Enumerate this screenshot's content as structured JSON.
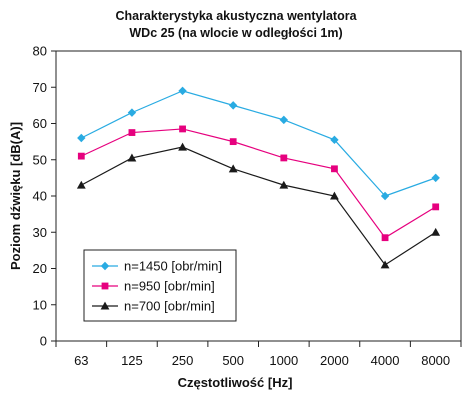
{
  "chart_data": {
    "type": "line",
    "title_line1": "Charakterystyka akustyczna wentylatora",
    "title_line2": "WDc 25 (na wlocie w odległości 1m)",
    "xlabel": "Częstotliwość [Hz]",
    "ylabel": "Poziom dźwięku [dB(A)]",
    "categories": [
      "63",
      "125",
      "250",
      "500",
      "1000",
      "2000",
      "4000",
      "8000"
    ],
    "ylim": [
      0,
      80
    ],
    "yticks": [
      0,
      10,
      20,
      30,
      40,
      50,
      60,
      70,
      80
    ],
    "grid": false,
    "legend_position": "bottom-left",
    "series": [
      {
        "name": "n=1450 [obr/min]",
        "color": "#29abe2",
        "marker": "diamond",
        "values": [
          56,
          63,
          69,
          65,
          61,
          55.5,
          40,
          45
        ]
      },
      {
        "name": "n=950 [obr/min]",
        "color": "#e6007e",
        "marker": "square",
        "values": [
          51,
          57.5,
          58.5,
          55,
          50.5,
          47.5,
          28.5,
          37
        ]
      },
      {
        "name": "n=700 [obr/min]",
        "color": "#1a1a1a",
        "marker": "triangle",
        "values": [
          43,
          50.5,
          53.5,
          47.5,
          43,
          40,
          21,
          30
        ]
      }
    ]
  }
}
